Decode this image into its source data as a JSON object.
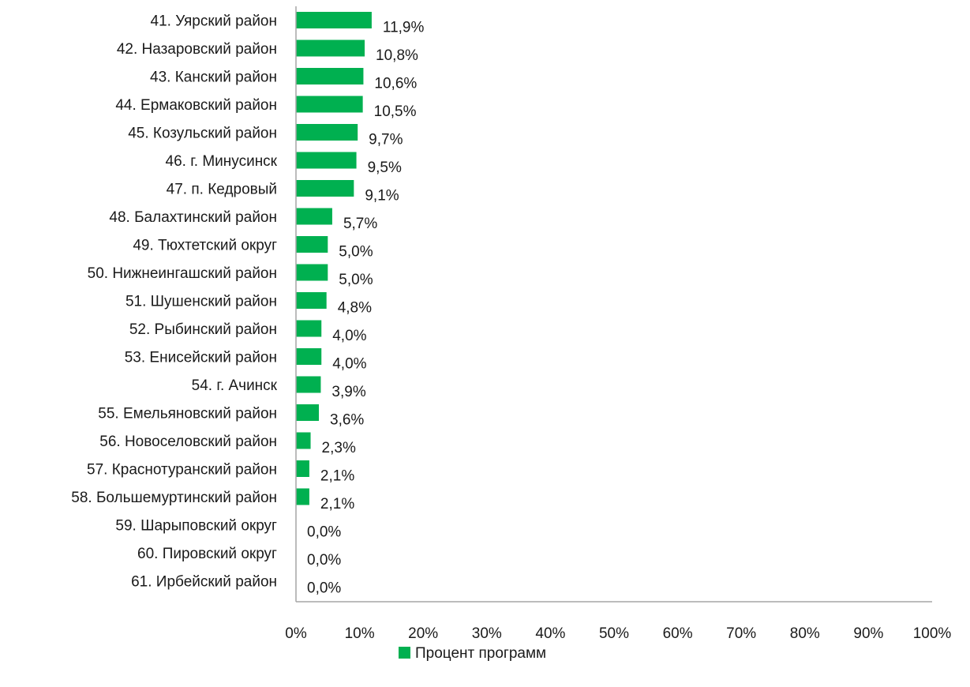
{
  "chart_data": {
    "type": "bar",
    "orientation": "horizontal",
    "categories": [
      "41. Уярский район",
      "42. Назаровский район",
      "43. Канский район",
      "44. Ермаковский район",
      "45. Козульский район",
      "46. г. Минусинск",
      "47. п. Кедровый",
      "48. Балахтинский район",
      "49. Тюхтетский округ",
      "50. Нижнеингашский район",
      "51. Шушенский район",
      "52. Рыбинский район",
      "53. Енисейский район",
      "54. г. Ачинск",
      "55. Емельяновский район",
      "56. Новоселовский район",
      "57. Краснотуранский район",
      "58. Большемуртинский район",
      "59. Шарыповский округ",
      "60. Пировский округ",
      "61. Ирбейский район"
    ],
    "series": [
      {
        "name": "Процент программ",
        "color": "#00b050",
        "values": [
          11.9,
          10.8,
          10.6,
          10.5,
          9.7,
          9.5,
          9.1,
          5.7,
          5.0,
          5.0,
          4.8,
          4.0,
          4.0,
          3.9,
          3.6,
          2.3,
          2.1,
          2.1,
          0.0,
          0.0,
          0.0
        ],
        "data_labels": [
          "11,9%",
          "10,8%",
          "10,6%",
          "10,5%",
          "9,7%",
          "9,5%",
          "9,1%",
          "5,7%",
          "5,0%",
          "5,0%",
          "4,8%",
          "4,0%",
          "4,0%",
          "3,9%",
          "3,6%",
          "2,3%",
          "2,1%",
          "2,1%",
          "0,0%",
          "0,0%",
          "0,0%"
        ]
      }
    ],
    "xlim": [
      0,
      100
    ],
    "x_ticks": [
      "0%",
      "10%",
      "20%",
      "30%",
      "40%",
      "50%",
      "60%",
      "70%",
      "80%",
      "90%",
      "100%"
    ],
    "grid": false,
    "legend": {
      "position": "bottom",
      "entries": [
        "Процент программ"
      ]
    }
  }
}
